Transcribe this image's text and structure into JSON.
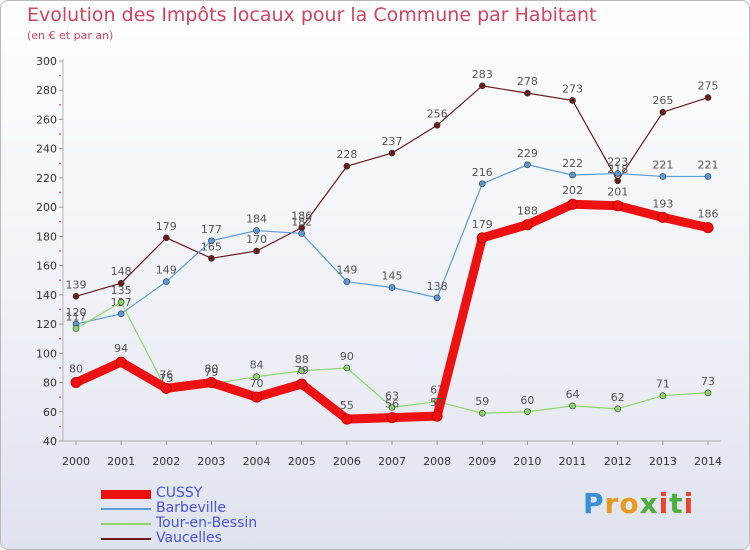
{
  "header": {
    "title": "Evolution des Impôts locaux pour la Commune par Habitant",
    "subtitle": "(en € et par an)"
  },
  "brand": {
    "letters": [
      "P",
      "r",
      "o",
      "x",
      "i",
      "t",
      "i"
    ],
    "colors": [
      "#3a8fd9",
      "#e99a1f",
      "#e99a1f",
      "#4fae3c",
      "#e8452c",
      "#4fae3c",
      "#e8452c"
    ]
  },
  "chart_data": {
    "type": "line",
    "title": "Evolution des Impôts locaux pour la Commune par Habitant",
    "subtitle": "(en € et par an)",
    "xlabel": "",
    "ylabel": "",
    "x": [
      "2000",
      "2001",
      "2002",
      "2003",
      "2004",
      "2005",
      "2006",
      "2007",
      "2008",
      "2009",
      "2010",
      "2011",
      "2012",
      "2013",
      "2014"
    ],
    "ylim": [
      40,
      300
    ],
    "yticks": [
      "40",
      "60",
      "80",
      "100",
      "120",
      "140",
      "160",
      "180",
      "200",
      "220",
      "240",
      "260",
      "280",
      "300"
    ],
    "grid": false,
    "legend_position": "bottom-left",
    "series": [
      {
        "name": "Vaucelles",
        "color": "#6b1b1b",
        "values": [
          139,
          148,
          179,
          165,
          170,
          186,
          228,
          237,
          256,
          283,
          278,
          273,
          218,
          265,
          275
        ]
      },
      {
        "name": "Barbeville",
        "color": "#5b9bd5",
        "values": [
          120,
          127,
          149,
          177,
          184,
          182,
          149,
          145,
          138,
          216,
          229,
          222,
          223,
          221,
          221
        ]
      },
      {
        "name": "Tour-en-Bessin",
        "color": "#8fd66a",
        "values": [
          117,
          135,
          75,
          79,
          84,
          88,
          90,
          63,
          67,
          59,
          60,
          64,
          62,
          71,
          73
        ]
      },
      {
        "name": "CUSSY",
        "color": "#ee1111",
        "values": [
          80,
          94,
          76,
          80,
          70,
          79,
          55,
          56,
          57,
          179,
          188,
          202,
          201,
          193,
          186
        ]
      }
    ],
    "legend": [
      "CUSSY",
      "Barbeville",
      "Tour-en-Bessin",
      "Vaucelles"
    ]
  }
}
